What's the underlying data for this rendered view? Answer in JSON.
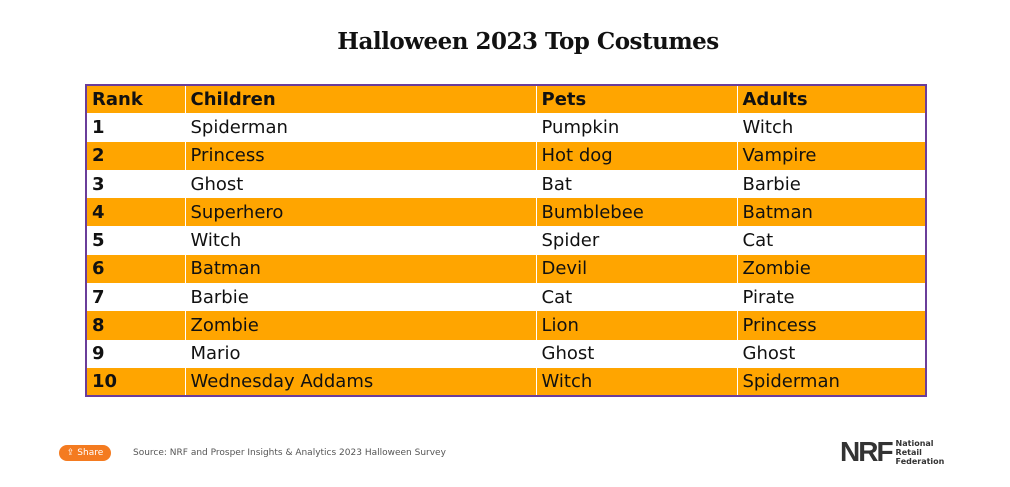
{
  "title": "Halloween 2023 Top Costumes",
  "table": {
    "headers": [
      "Rank",
      "Children",
      "Pets",
      "Adults"
    ],
    "rows": [
      [
        "1",
        "Spiderman",
        "Pumpkin",
        "Witch"
      ],
      [
        "2",
        "Princess",
        "Hot dog",
        "Vampire"
      ],
      [
        "3",
        "Ghost",
        "Bat",
        "Barbie"
      ],
      [
        "4",
        "Superhero",
        "Bumblebee",
        "Batman"
      ],
      [
        "5",
        "Witch",
        "Spider",
        "Cat"
      ],
      [
        "6",
        "Batman",
        "Devil",
        "Zombie"
      ],
      [
        "7",
        "Barbie",
        "Cat",
        "Pirate"
      ],
      [
        "8",
        "Zombie",
        "Lion",
        "Princess"
      ],
      [
        "9",
        "Mario",
        "Ghost",
        "Ghost"
      ],
      [
        "10",
        "Wednesday Addams",
        "Witch",
        "Spiderman"
      ]
    ]
  },
  "footer": {
    "share_label": "Share",
    "source": "Source: NRF and Prosper Insights & Analytics 2023 Halloween Survey",
    "logo_mark": "NRF",
    "logo_text": [
      "National",
      "Retail",
      "Federation"
    ]
  },
  "colors": {
    "orange": "#ffa500",
    "border": "#6a3d9a",
    "share": "#f47b20"
  }
}
